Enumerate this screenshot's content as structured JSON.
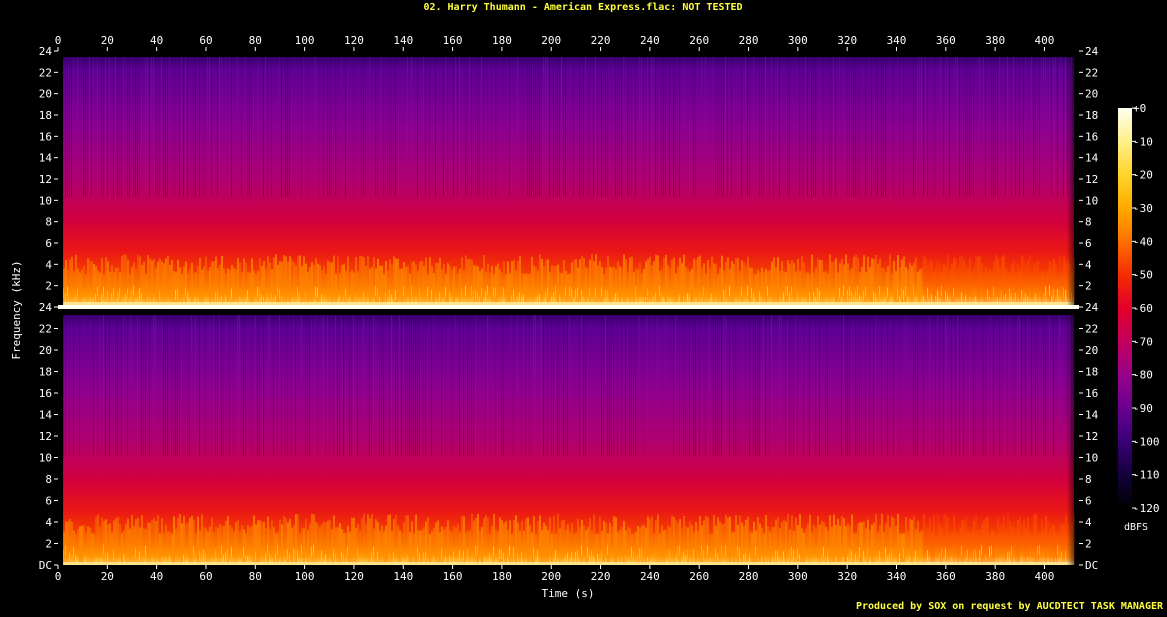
{
  "title": "02. Harry Thumann - American Express.flac: NOT TESTED",
  "footer": "Produced by SOX on request by AUCDTECT TASK MANAGER",
  "colors": {
    "background": "#000000",
    "title_text": "#ffff40",
    "axis_text": "#ffffff",
    "tick": "#ffffff"
  },
  "chart_data": {
    "type": "heatmap",
    "xlabel": "Time (s)",
    "ylabel": "Frequency (kHz)",
    "xlim": [
      0,
      414
    ],
    "x_ticks": [
      0,
      20,
      40,
      60,
      80,
      100,
      120,
      140,
      160,
      180,
      200,
      220,
      240,
      260,
      280,
      300,
      320,
      340,
      360,
      380,
      400
    ],
    "y_ticks_top_channel": [
      "24",
      "22",
      "20",
      "18",
      "16",
      "14",
      "12",
      "10",
      "8",
      "6",
      "4",
      "2"
    ],
    "y_ticks_bottom_channel": [
      "24",
      "22",
      "20",
      "18",
      "16",
      "14",
      "12",
      "10",
      "8",
      "6",
      "4",
      "2",
      "DC"
    ],
    "channels": 2,
    "ylim_khz": [
      0,
      24
    ],
    "signal_cutoff_khz": 23.4,
    "quiet_segment_start_s": 350,
    "colorbar": {
      "unit": "dBFS",
      "range": [
        -120,
        0
      ],
      "ticks": [
        "+0",
        "-10",
        "-20",
        "-30",
        "-40",
        "-50",
        "-60",
        "-70",
        "-80",
        "-90",
        "-100",
        "-110",
        "-120"
      ],
      "colors": [
        "#000000",
        "#14003c",
        "#3a0078",
        "#6a0090",
        "#98008a",
        "#c4005c",
        "#e2002a",
        "#f42c00",
        "#fd7000",
        "#ffaa00",
        "#ffd42a",
        "#fff08a",
        "#fffff0"
      ]
    }
  }
}
